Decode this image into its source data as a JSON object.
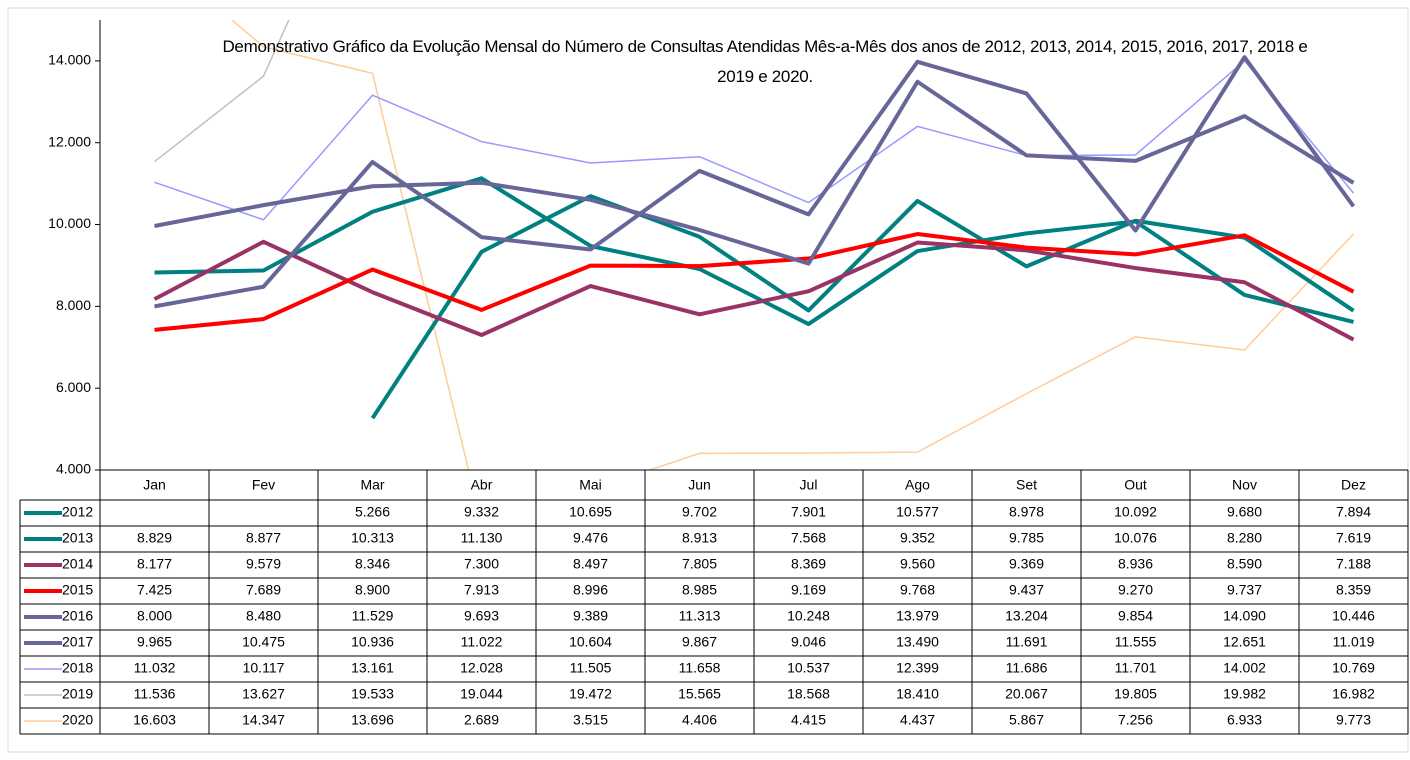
{
  "chart_data": {
    "type": "line",
    "title": "Demonstrativo Gráfico da Evolução Mensal do Número de Consultas Atendidas Mês-a-Mês dos anos de  2012, 2013, 2014, 2015, 2016, 2017, 2018 e 2019 e 2020.",
    "categories": [
      "Jan",
      "Fev",
      "Mar",
      "Abr",
      "Mai",
      "Jun",
      "Jul",
      "Ago",
      "Set",
      "Out",
      "Nov",
      "Dez"
    ],
    "ylim": [
      4000,
      15000
    ],
    "yticks": [
      {
        "value": 4000,
        "label": "4.000"
      },
      {
        "value": 6000,
        "label": "6.000"
      },
      {
        "value": 8000,
        "label": "8.000"
      },
      {
        "value": 10000,
        "label": "10.000"
      },
      {
        "value": 12000,
        "label": "12.000"
      },
      {
        "value": 14000,
        "label": "14.000"
      }
    ],
    "grid": false,
    "series": [
      {
        "name": "2012",
        "color": "#008080",
        "values": [
          null,
          null,
          5266,
          9332,
          10695,
          9702,
          7901,
          10577,
          8978,
          10092,
          9680,
          7894
        ],
        "value_labels": [
          null,
          null,
          "5.266",
          "9.332",
          "10.695",
          "9.702",
          "7.901",
          "10.577",
          "8.978",
          "10.092",
          "9.680",
          "7.894"
        ]
      },
      {
        "name": "2013",
        "color": "#008080",
        "values": [
          8829,
          8877,
          10313,
          11130,
          9476,
          8913,
          7568,
          9352,
          9785,
          10076,
          8280,
          7619
        ],
        "value_labels": [
          "8.829",
          "8.877",
          "10.313",
          "11.130",
          "9.476",
          "8.913",
          "7.568",
          "9.352",
          "9.785",
          "10.076",
          "8.280",
          "7.619"
        ]
      },
      {
        "name": "2014",
        "color": "#993366",
        "values": [
          8177,
          9579,
          8346,
          7300,
          8497,
          7805,
          8369,
          9560,
          9369,
          8936,
          8590,
          7188
        ],
        "value_labels": [
          "8.177",
          "9.579",
          "8.346",
          "7.300",
          "8.497",
          "7.805",
          "8.369",
          "9.560",
          "9.369",
          "8.936",
          "8.590",
          "7.188"
        ]
      },
      {
        "name": "2015",
        "color": "#ff0000",
        "values": [
          7425,
          7689,
          8900,
          7913,
          8996,
          8985,
          9169,
          9768,
          9437,
          9270,
          9737,
          8359
        ],
        "value_labels": [
          "7.425",
          "7.689",
          "8.900",
          "7.913",
          "8.996",
          "8.985",
          "9.169",
          "9.768",
          "9.437",
          "9.270",
          "9.737",
          "8.359"
        ]
      },
      {
        "name": "2016",
        "color": "#666699",
        "values": [
          8000,
          8480,
          11529,
          9693,
          9389,
          11313,
          10248,
          13979,
          13204,
          9854,
          14090,
          10446
        ],
        "value_labels": [
          "8.000",
          "8.480",
          "11.529",
          "9.693",
          "9.389",
          "11.313",
          "10.248",
          "13.979",
          "13.204",
          "9.854",
          "14.090",
          "10.446"
        ]
      },
      {
        "name": "2017",
        "color": "#666699",
        "values": [
          9965,
          10475,
          10936,
          11022,
          10604,
          9867,
          9046,
          13490,
          11691,
          11555,
          12651,
          11019
        ],
        "value_labels": [
          "9.965",
          "10.475",
          "10.936",
          "11.022",
          "10.604",
          "9.867",
          "9.046",
          "13.490",
          "11.691",
          "11.555",
          "12.651",
          "11.019"
        ]
      },
      {
        "name": "2018",
        "color": "#9999ff",
        "values": [
          11032,
          10117,
          13161,
          12028,
          11505,
          11658,
          10537,
          12399,
          11686,
          11701,
          14002,
          10769
        ],
        "value_labels": [
          "11.032",
          "10.117",
          "13.161",
          "12.028",
          "11.505",
          "11.658",
          "10.537",
          "12.399",
          "11.686",
          "11.701",
          "14.002",
          "10.769"
        ]
      },
      {
        "name": "2019",
        "color": "#c0c0c0",
        "values": [
          11536,
          13627,
          19533,
          19044,
          19472,
          15565,
          18568,
          18410,
          20067,
          19805,
          19982,
          16982
        ],
        "value_labels": [
          "11.536",
          "13.627",
          "19.533",
          "19.044",
          "19.472",
          "15.565",
          "18.568",
          "18.410",
          "20.067",
          "19.805",
          "19.982",
          "16.982"
        ]
      },
      {
        "name": "2020",
        "color": "#ffcc99",
        "values": [
          16603,
          14347,
          13696,
          2689,
          3515,
          4406,
          4415,
          4437,
          5867,
          7256,
          6933,
          9773
        ],
        "value_labels": [
          "16.603",
          "14.347",
          "13.696",
          "2.689",
          "3.515",
          "4.406",
          "4.415",
          "4.437",
          "5.867",
          "7.256",
          "6.933",
          "9.773"
        ]
      }
    ]
  }
}
